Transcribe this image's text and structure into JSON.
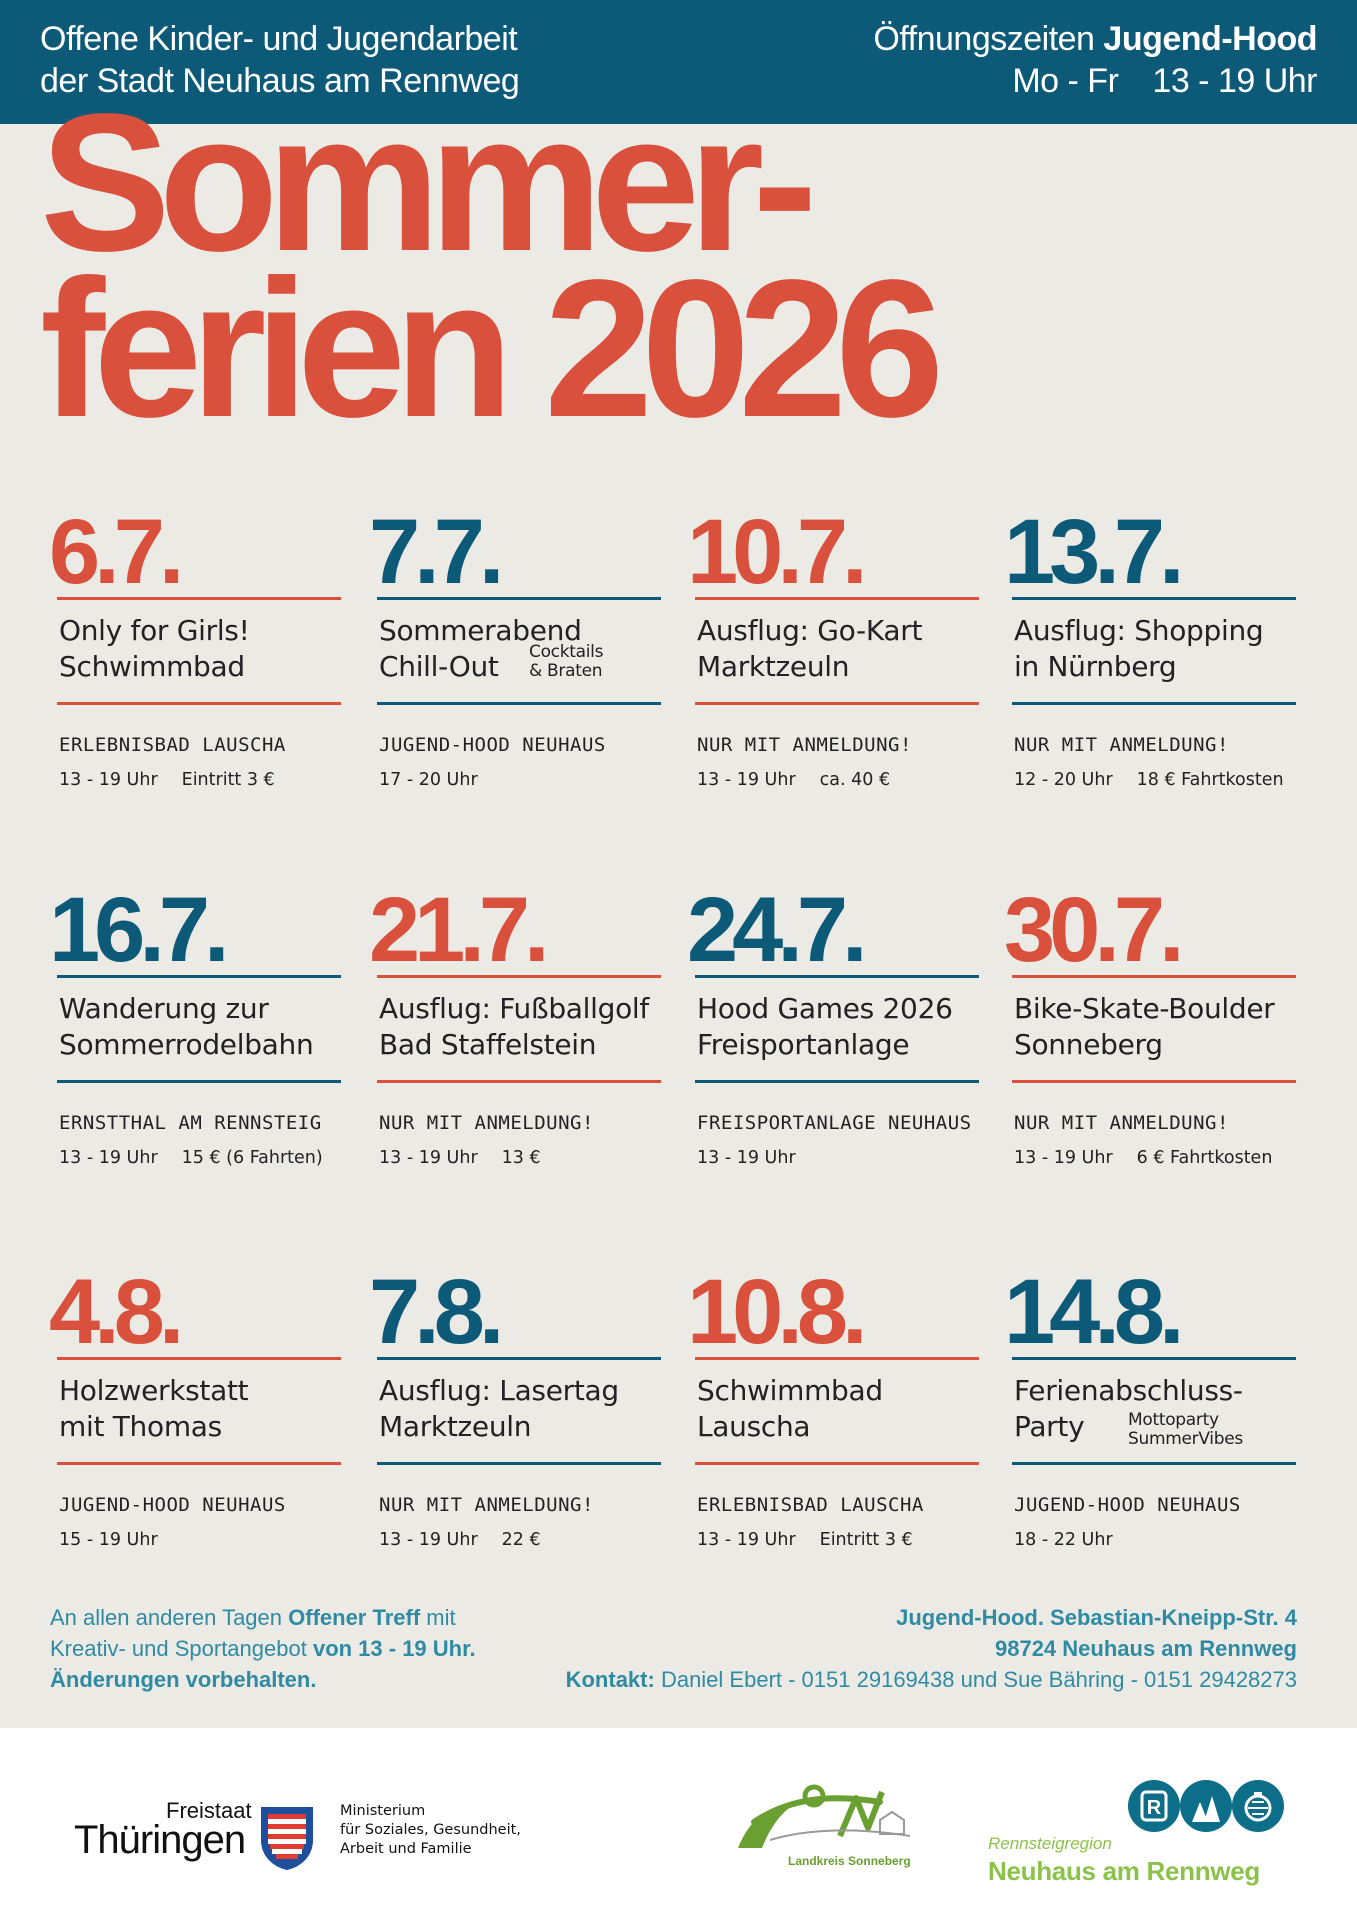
{
  "header": {
    "org_line1": "Offene Kinder- und Jugendarbeit",
    "org_line2": "der Stadt Neuhaus am Rennweg",
    "hours_label": "Öffnungszeiten",
    "hours_place": "Jugend-Hood",
    "hours_days": "Mo - Fr",
    "hours_time": "13 - 19 Uhr"
  },
  "title": {
    "line1": "Sommer-",
    "line2": "ferien 2026"
  },
  "events": [
    {
      "date": "6.7.",
      "name1": "Only for Girls!",
      "name2": "Schwimmbad",
      "sub1": "",
      "sub2": "",
      "location": "ERLEBNISBAD LAUSCHA",
      "time": "13 - 19 Uhr",
      "price": "Eintritt 3 €"
    },
    {
      "date": "7.7.",
      "name1": "Sommerabend",
      "name2": "Chill-Out",
      "sub1": "Cocktails",
      "sub2": "& Braten",
      "location": "JUGEND-HOOD NEUHAUS",
      "time": "17 - 20 Uhr",
      "price": ""
    },
    {
      "date": "10.7.",
      "name1": "Ausflug: Go-Kart",
      "name2": "Marktzeuln",
      "sub1": "",
      "sub2": "",
      "location": "NUR MIT ANMELDUNG!",
      "time": "13 - 19 Uhr",
      "price": "ca. 40 €"
    },
    {
      "date": "13.7.",
      "name1": "Ausflug: Shopping",
      "name2": "in Nürnberg",
      "sub1": "",
      "sub2": "",
      "location": "NUR MIT ANMELDUNG!",
      "time": "12 - 20 Uhr",
      "price": "18 € Fahrtkosten"
    },
    {
      "date": "16.7.",
      "name1": "Wanderung zur",
      "name2": "Sommerrodelbahn",
      "sub1": "",
      "sub2": "",
      "location": "ERNSTTHAL AM RENNSTEIG",
      "time": "13 - 19 Uhr",
      "price": "15 € (6 Fahrten)"
    },
    {
      "date": "21.7.",
      "name1": "Ausflug: Fußballgolf",
      "name2": "Bad Staffelstein",
      "sub1": "",
      "sub2": "",
      "location": "NUR MIT ANMELDUNG!",
      "time": "13 - 19 Uhr",
      "price": "13 €"
    },
    {
      "date": "24.7.",
      "name1": "Hood Games 2026",
      "name2": "Freisportanlage",
      "sub1": "",
      "sub2": "",
      "location": "FREISPORTANLAGE NEUHAUS",
      "time": "13 - 19 Uhr",
      "price": ""
    },
    {
      "date": "30.7.",
      "name1": "Bike-Skate-Boulder",
      "name2": "Sonneberg",
      "sub1": "",
      "sub2": "",
      "location": "NUR MIT ANMELDUNG!",
      "time": "13 - 19 Uhr",
      "price": "6 € Fahrtkosten"
    },
    {
      "date": "4.8.",
      "name1": "Holzwerkstatt",
      "name2": "mit Thomas",
      "sub1": "",
      "sub2": "",
      "location": "JUGEND-HOOD NEUHAUS",
      "time": "15 - 19 Uhr",
      "price": ""
    },
    {
      "date": "7.8.",
      "name1": "Ausflug: Lasertag",
      "name2": "Marktzeuln",
      "sub1": "",
      "sub2": "",
      "location": "NUR MIT ANMELDUNG!",
      "time": "13 - 19 Uhr",
      "price": "22 €"
    },
    {
      "date": "10.8.",
      "name1": "Schwimmbad",
      "name2": "Lauscha",
      "sub1": "",
      "sub2": "",
      "location": "ERLEBNISBAD LAUSCHA",
      "time": "13 - 19 Uhr",
      "price": "Eintritt 3 €"
    },
    {
      "date": "14.8.",
      "name1": "Ferienabschluss-",
      "name2": "Party",
      "sub1": "Mottoparty",
      "sub2": "SummerVibes",
      "location": "JUGEND-HOOD NEUHAUS",
      "time": "18 - 22 Uhr",
      "price": ""
    }
  ],
  "footer": {
    "left_1a": "An allen anderen Tagen ",
    "left_1b": "Offener Treff",
    "left_1c": " mit",
    "left_2a": "Kreativ- und Sportangebot ",
    "left_2b": "von 13 - 19 Uhr.",
    "left_3": "Änderungen vorbehalten.",
    "right_1": "Jugend-Hood. Sebastian-Kneipp-Str. 4",
    "right_2": "98724 Neuhaus am Rennweg",
    "right_3a": "Kontakt:",
    "right_3b": " Daniel Ebert - 0151 29169438 und Sue Bähring - 0151 29428273"
  },
  "logos": {
    "freistaat": "Freistaat",
    "thueringen": "Thüringen",
    "ministry1": "Ministerium",
    "ministry2": "für Soziales, Gesundheit,",
    "ministry3": "Arbeit und Familie",
    "landkreis": "Landkreis Sonneberg",
    "region_small": "Rennsteigregion",
    "region_big": "Neuhaus am Rennweg"
  },
  "colors": {
    "red": "#d9503c",
    "blue": "#0c5a77",
    "teal": "#2f8ba4",
    "green": "#8bc34a",
    "bg": "#eceae5"
  }
}
